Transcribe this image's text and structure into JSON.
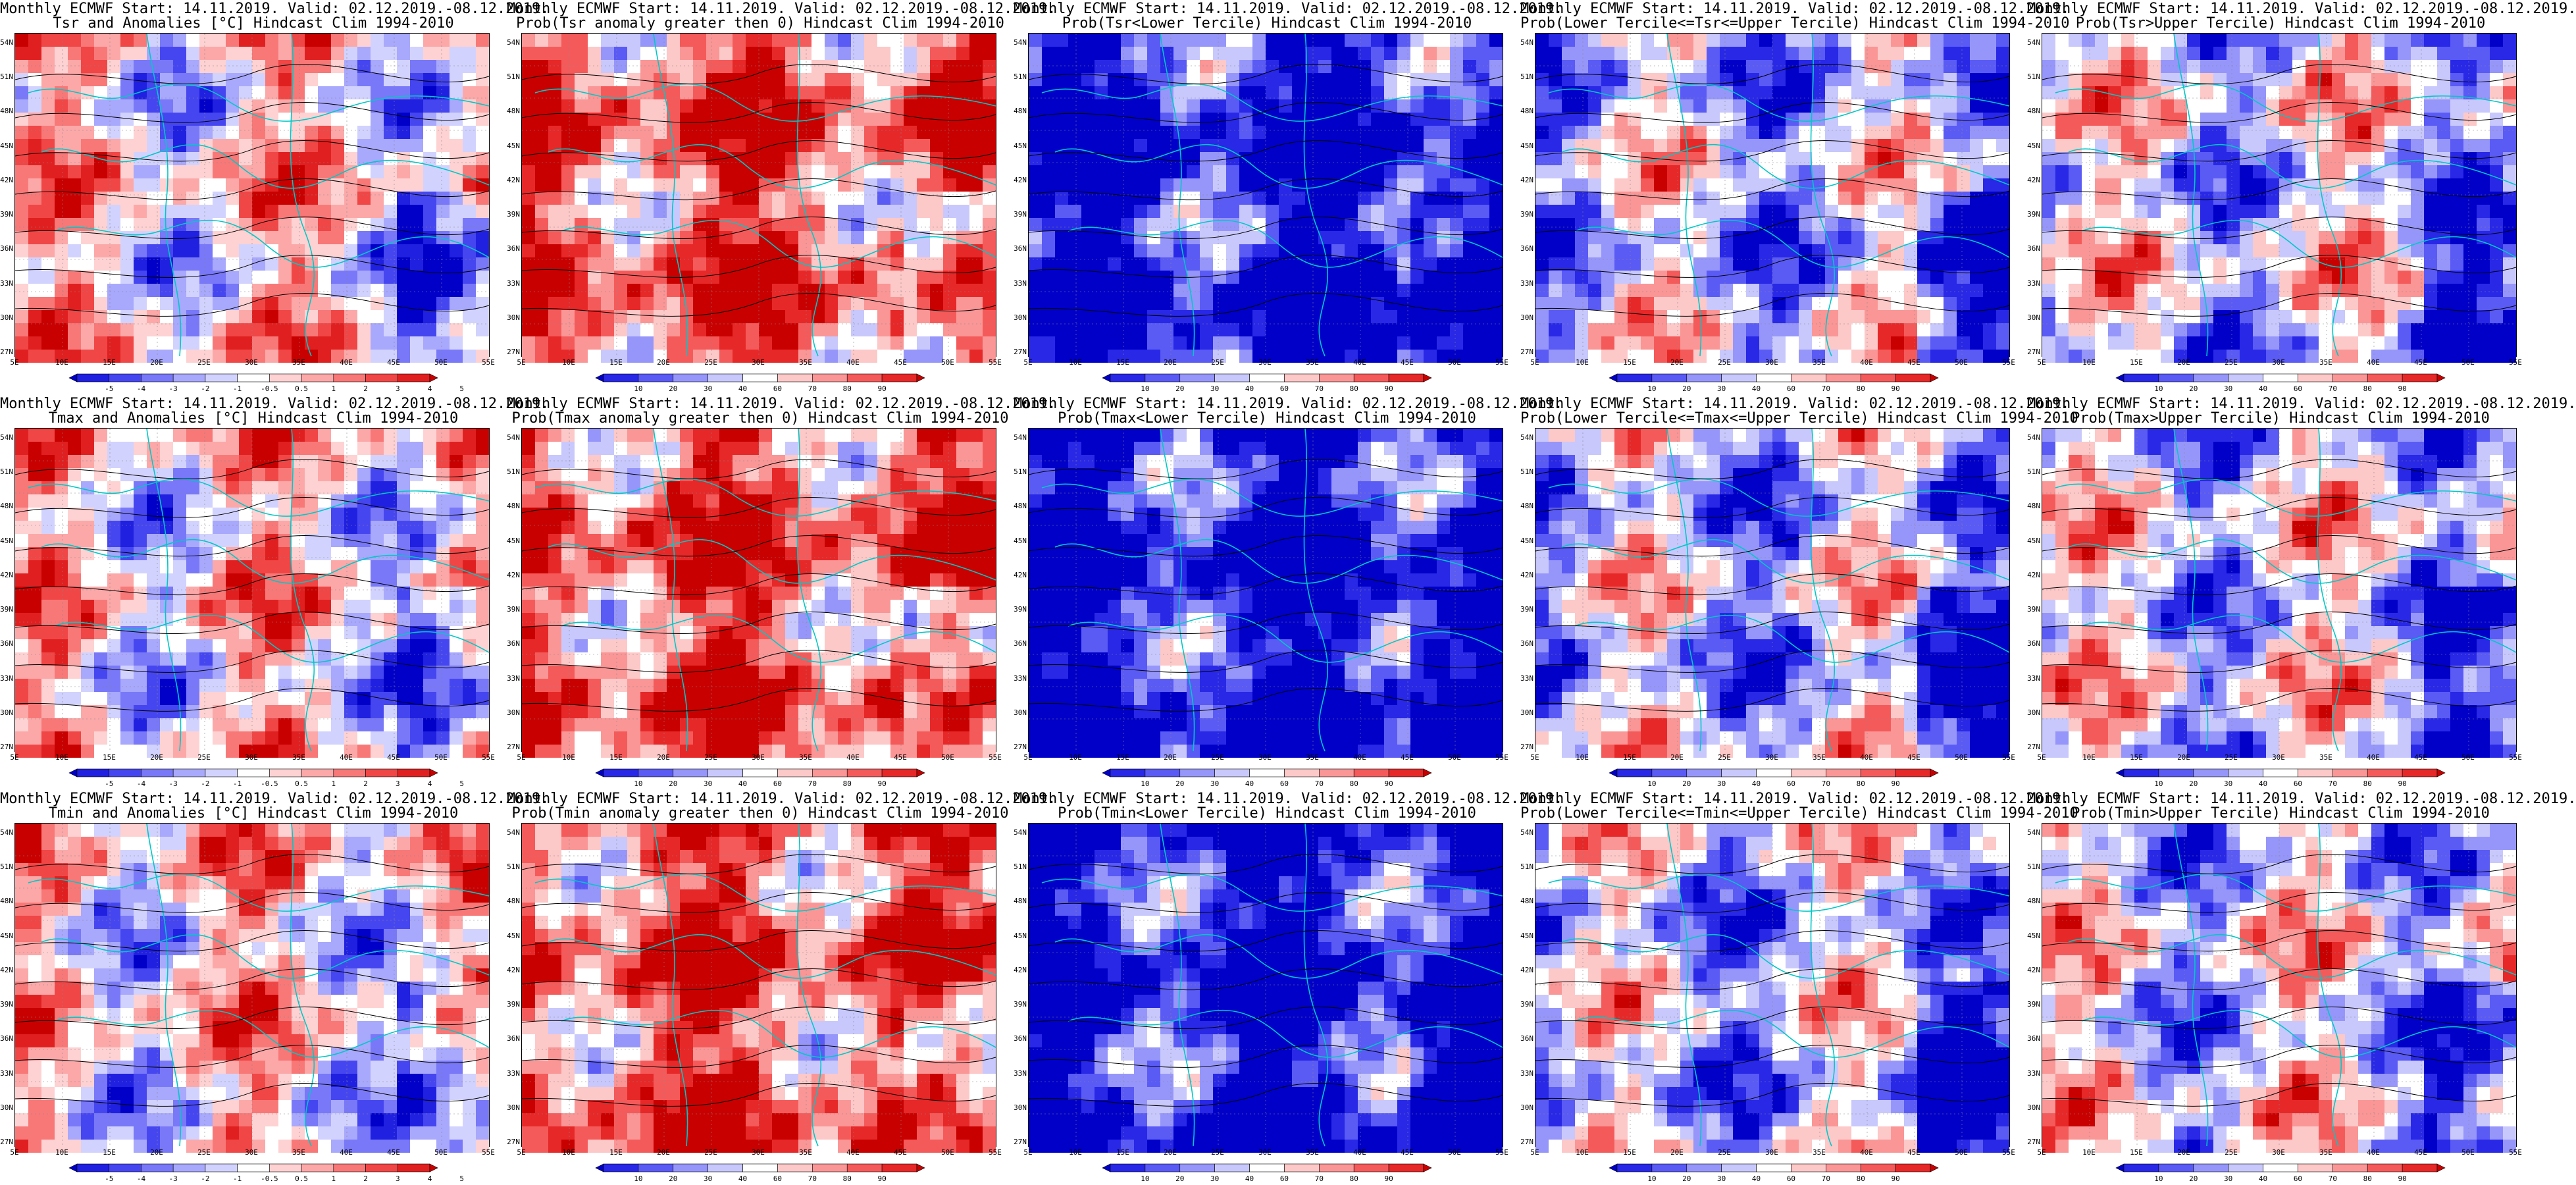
{
  "panels": [
    {
      "title1": "Monthly ECMWF Start: 14.11.2019. Valid: 02.12.2019.-08.12.2019.",
      "title2": "Tsr and Anomalies [°C] Hindcast Clim 1994-2010",
      "kind": "anom",
      "bias": 0.55
    },
    {
      "title1": "Monthly ECMWF Start: 14.11.2019. Valid: 02.12.2019.-08.12.2019.",
      "title2": "Prob(Tsr anomaly greater then 0) Hindcast Clim 1994-2010",
      "kind": "prob",
      "bias": 0.78
    },
    {
      "title1": "Monthly ECMWF Start: 14.11.2019. Valid: 02.12.2019.-08.12.2019.",
      "title2": "Prob(Tsr<Lower Tercile) Hindcast Clim 1994-2010",
      "kind": "prob",
      "bias": 0.08
    },
    {
      "title1": "Monthly ECMWF Start: 14.11.2019. Valid: 02.12.2019.-08.12.2019.",
      "title2": "Prob(Lower Tercile<=Tsr<=Upper Tercile) Hindcast Clim 1994-2010",
      "kind": "prob",
      "bias": 0.4
    },
    {
      "title1": "Monthly ECMWF Start: 14.11.2019. Valid: 02.12.2019.-08.12.2019.",
      "title2": "Prob(Tsr>Upper Tercile) Hindcast Clim 1994-2010",
      "kind": "prob",
      "bias": 0.45
    },
    {
      "title1": "Monthly ECMWF Start: 14.11.2019. Valid: 02.12.2019.-08.12.2019.",
      "title2": "Tmax and Anomalies [°C] Hindcast Clim 1994-2010",
      "kind": "anom",
      "bias": 0.55
    },
    {
      "title1": "Monthly ECMWF Start: 14.11.2019. Valid: 02.12.2019.-08.12.2019.",
      "title2": "Prob(Tmax anomaly greater then 0) Hindcast Clim 1994-2010",
      "kind": "prob",
      "bias": 0.78
    },
    {
      "title1": "Monthly ECMWF Start: 14.11.2019. Valid: 02.12.2019.-08.12.2019.",
      "title2": "Prob(Tmax<Lower Tercile) Hindcast Clim 1994-2010",
      "kind": "prob",
      "bias": 0.08
    },
    {
      "title1": "Monthly ECMWF Start: 14.11.2019. Valid: 02.12.2019.-08.12.2019.",
      "title2": "Prob(Lower Tercile<=Tmax<=Upper Tercile) Hindcast Clim 1994-2010",
      "kind": "prob",
      "bias": 0.4
    },
    {
      "title1": "Monthly ECMWF Start: 14.11.2019. Valid: 02.12.2019.-08.12.2019.",
      "title2": "Prob(Tmax>Upper Tercile) Hindcast Clim 1994-2010",
      "kind": "prob",
      "bias": 0.45
    },
    {
      "title1": "Monthly ECMWF Start: 14.11.2019. Valid: 02.12.2019.-08.12.2019.",
      "title2": "Tmin and Anomalies [°C] Hindcast Clim 1994-2010",
      "kind": "anom",
      "bias": 0.55
    },
    {
      "title1": "Monthly ECMWF Start: 14.11.2019. Valid: 02.12.2019.-08.12.2019.",
      "title2": "Prob(Tmin anomaly greater then 0) Hindcast Clim 1994-2010",
      "kind": "prob",
      "bias": 0.78
    },
    {
      "title1": "Monthly ECMWF Start: 14.11.2019. Valid: 02.12.2019.-08.12.2019.",
      "title2": "Prob(Tmin<Lower Tercile) Hindcast Clim 1994-2010",
      "kind": "prob",
      "bias": 0.08
    },
    {
      "title1": "Monthly ECMWF Start: 14.11.2019. Valid: 02.12.2019.-08.12.2019.",
      "title2": "Prob(Lower Tercile<=Tmin<=Upper Tercile) Hindcast Clim 1994-2010",
      "kind": "prob",
      "bias": 0.4
    },
    {
      "title1": "Monthly ECMWF Start: 14.11.2019. Valid: 02.12.2019.-08.12.2019.",
      "title2": "Prob(Tmin>Upper Tercile) Hindcast Clim 1994-2010",
      "kind": "prob",
      "bias": 0.45
    }
  ],
  "lat_labels": [
    "54N",
    "51N",
    "48N",
    "45N",
    "42N",
    "39N",
    "36N",
    "33N",
    "30N",
    "27N"
  ],
  "lon_labels": [
    "5E",
    "10E",
    "15E",
    "20E",
    "25E",
    "30E",
    "35E",
    "40E",
    "45E",
    "50E",
    "55E"
  ],
  "anom_ticks": [
    "-5",
    "-4",
    "-3",
    "-2",
    "-1",
    "-0.5",
    "0.5",
    "1",
    "2",
    "3",
    "4",
    "5"
  ],
  "prob_ticks": [
    "10",
    "20",
    "30",
    "40",
    "60",
    "70",
    "80",
    "90"
  ],
  "colors": {
    "anom_scale": [
      "#0000c8",
      "#2020e0",
      "#4646f0",
      "#7878f8",
      "#a8a8fc",
      "#d2d2fe",
      "#ffffff",
      "#fed2d2",
      "#fca8a8",
      "#f87878",
      "#f04646",
      "#e02020",
      "#c80000"
    ],
    "prob_scale": [
      "#0000c8",
      "#2828e6",
      "#5a5af5",
      "#9696fa",
      "#c8c8fd",
      "#ffffff",
      "#fdc8c8",
      "#fa9696",
      "#f55a5a",
      "#e62828",
      "#c80000"
    ],
    "border": "#00c8c8",
    "contour": "#000000"
  }
}
